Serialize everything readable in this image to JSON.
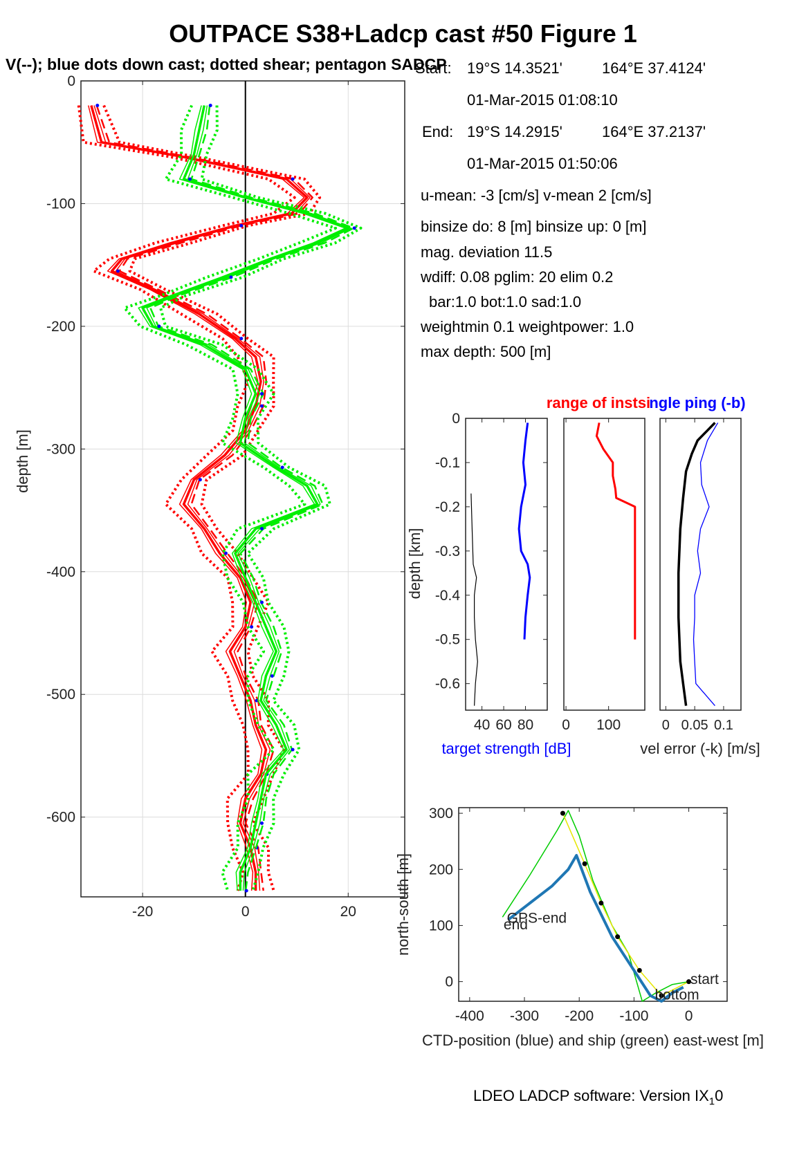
{
  "title": "OUTPACE S38+Ladcp cast #50  Figure 1",
  "subtitle": "V(--); blue dots down cast; dotted shear; pentagon SADCP",
  "info": {
    "start_label": "Start:",
    "start_lat": "19°S 14.3521'",
    "start_lon": "164°E 37.4124'",
    "start_time": "01-Mar-2015 01:08:10",
    "end_label": "End:",
    "end_lat": "19°S 14.2915'",
    "end_lon": "164°E 37.2137'",
    "end_time": "01-Mar-2015 01:50:06",
    "means": "u-mean:  -3 [cm/s]    v-mean   2 [cm/s]",
    "binsize": "binsize do: 8 [m]  binsize up:  0 [m]",
    "magdev": "mag. deviation 11.5",
    "wdiff": "wdiff: 0.08  pglim: 20  elim 0.2",
    "weights_bar": "bar:1.0 bot:1.0 sad:1.0",
    "weightmin": "weightmin 0.1  weightpower: 1.0",
    "maxdepth": "max depth: 500 [m]"
  },
  "footer": {
    "software": "LDEO LADCP software: Version IX",
    "sub": "1",
    "suffix": "0"
  },
  "colors": {
    "u": "#ff0000",
    "v": "#00ee00",
    "ts": "#0000ff",
    "track": "#1f77b4",
    "ship": "#00cc00",
    "yellow": "#e6e600"
  },
  "chart_data": [
    {
      "type": "line",
      "name": "velocity profiles",
      "ylabel": "depth [m]",
      "xlim": [
        -32,
        31
      ],
      "ylim": [
        -665,
        0
      ],
      "xticks": [
        -20,
        0,
        20
      ],
      "yticks": [
        0,
        -100,
        -200,
        -300,
        -400,
        -500,
        -600
      ],
      "grid": true,
      "series": [
        {
          "color": "red",
          "depth": [
            20,
            50,
            62,
            80,
            95,
            108,
            118,
            132,
            145,
            155,
            170,
            190,
            210,
            225,
            245,
            265,
            285,
            305,
            325,
            345,
            365,
            385,
            405,
            425,
            445,
            465,
            485,
            505,
            525,
            545,
            565,
            585,
            605,
            625,
            645,
            660
          ],
          "values": [
            -30,
            -28,
            -12,
            8,
            12,
            9,
            -2,
            -14,
            -24,
            -26,
            -18,
            -9,
            -2,
            2,
            3,
            2,
            0,
            -4,
            -10,
            -12,
            -8,
            -5,
            -1,
            1,
            0,
            -3,
            -1,
            1,
            2,
            4,
            3,
            0,
            -1,
            1,
            2,
            2
          ]
        },
        {
          "color": "green",
          "depth": [
            20,
            40,
            60,
            80,
            95,
            108,
            120,
            132,
            145,
            160,
            175,
            185,
            200,
            215,
            235,
            255,
            275,
            295,
            315,
            330,
            345,
            365,
            385,
            405,
            425,
            445,
            465,
            485,
            505,
            525,
            545,
            565,
            585,
            605,
            625,
            645,
            660
          ],
          "values": [
            -8,
            -9,
            -10,
            -12,
            0,
            12,
            20,
            14,
            5,
            -4,
            -14,
            -20,
            -18,
            -8,
            0,
            2,
            0,
            -1,
            6,
            12,
            14,
            2,
            -2,
            0,
            2,
            4,
            6,
            4,
            3,
            6,
            8,
            4,
            3,
            2,
            1,
            -1,
            -1
          ]
        }
      ]
    },
    {
      "type": "line",
      "name": "target strength",
      "xlabel": "target strength [dB]",
      "ylabel": "depth [km]",
      "xlim": [
        25,
        100
      ],
      "ylim": [
        -0.66,
        0
      ],
      "xticks": [
        40,
        60,
        80
      ],
      "yticks": [
        0,
        -0.1,
        -0.2,
        -0.3,
        -0.4,
        -0.5,
        -0.6
      ],
      "series": [
        {
          "color": "blue",
          "depth_km": [
            0.01,
            0.05,
            0.1,
            0.15,
            0.2,
            0.25,
            0.3,
            0.33,
            0.36,
            0.4,
            0.45,
            0.5
          ],
          "values": [
            82,
            80,
            78,
            80,
            76,
            74,
            76,
            82,
            84,
            82,
            80,
            79
          ]
        },
        {
          "color": "black",
          "depth_km": [
            0.17,
            0.25,
            0.33,
            0.36,
            0.4,
            0.45,
            0.5,
            0.55,
            0.6,
            0.65
          ],
          "values": [
            30,
            31,
            32,
            35,
            33,
            33,
            34,
            36,
            34,
            33
          ]
        }
      ]
    },
    {
      "type": "line",
      "name": "range of instruments",
      "title": "range of instsingle ping (-b)",
      "xlim": [
        -5,
        185
      ],
      "ylim": [
        -0.66,
        0
      ],
      "xticks": [
        0,
        100
      ],
      "series": [
        {
          "color": "red",
          "depth_km": [
            0.01,
            0.04,
            0.07,
            0.1,
            0.13,
            0.16,
            0.18,
            0.19,
            0.2,
            0.3,
            0.4,
            0.5
          ],
          "values": [
            78,
            72,
            88,
            110,
            110,
            116,
            118,
            140,
            162,
            162,
            162,
            162
          ]
        }
      ]
    },
    {
      "type": "line",
      "name": "velocity error",
      "xlabel": "vel error (-k) [m/s]",
      "xlim": [
        -0.01,
        0.13
      ],
      "ylim": [
        -0.66,
        0
      ],
      "xticks": [
        0,
        0.05,
        0.1
      ],
      "xticklabels": [
        "0",
        "0.05",
        "0.1"
      ],
      "series": [
        {
          "color": "black",
          "depth_km": [
            0.01,
            0.03,
            0.05,
            0.08,
            0.12,
            0.18,
            0.25,
            0.35,
            0.45,
            0.55,
            0.6,
            0.65
          ],
          "values": [
            0.085,
            0.07,
            0.055,
            0.045,
            0.035,
            0.03,
            0.025,
            0.022,
            0.022,
            0.025,
            0.03,
            0.035
          ]
        },
        {
          "color": "blue",
          "depth_km": [
            0.01,
            0.05,
            0.1,
            0.15,
            0.2,
            0.25,
            0.3,
            0.35,
            0.4,
            0.45,
            0.5,
            0.55,
            0.6,
            0.65
          ],
          "values": [
            0.09,
            0.072,
            0.06,
            0.062,
            0.075,
            0.06,
            0.055,
            0.06,
            0.05,
            0.05,
            0.048,
            0.05,
            0.052,
            0.085
          ]
        }
      ]
    },
    {
      "type": "line",
      "name": "position track",
      "xlabel": "CTD-position (blue) and ship (green) east-west [m]",
      "ylabel": "north-south [m]",
      "xlim": [
        -420,
        70
      ],
      "ylim": [
        -35,
        310
      ],
      "xticks": [
        -400,
        -300,
        -200,
        -100,
        0
      ],
      "yticks": [
        0,
        100,
        200,
        300
      ],
      "series": [
        {
          "color": "green",
          "points": [
            [
              0,
              0
            ],
            [
              -30,
              -5
            ],
            [
              -60,
              -20
            ],
            [
              -85,
              -35
            ],
            [
              -110,
              50
            ],
            [
              -140,
              100
            ],
            [
              -175,
              180
            ],
            [
              -200,
              260
            ],
            [
              -220,
              305
            ],
            [
              -240,
              270
            ],
            [
              -290,
              190
            ],
            [
              -340,
              115
            ]
          ]
        },
        {
          "color": "blue",
          "points": [
            [
              -10,
              -10
            ],
            [
              -30,
              -20
            ],
            [
              -50,
              -35
            ],
            [
              -70,
              -25
            ],
            [
              -100,
              20
            ],
            [
              -140,
              80
            ],
            [
              -180,
              160
            ],
            [
              -205,
              225
            ],
            [
              -220,
              200
            ],
            [
              -250,
              170
            ],
            [
              -290,
              140
            ],
            [
              -330,
              110
            ]
          ]
        },
        {
          "color": "yellow",
          "points": [
            [
              0,
              0
            ],
            [
              -50,
              -25
            ],
            [
              -90,
              20
            ],
            [
              -130,
              80
            ],
            [
              -160,
              140
            ],
            [
              -190,
              210
            ],
            [
              -230,
              300
            ]
          ]
        }
      ],
      "annotations": [
        "start",
        "bottom",
        "end",
        "GPS-end"
      ]
    }
  ]
}
